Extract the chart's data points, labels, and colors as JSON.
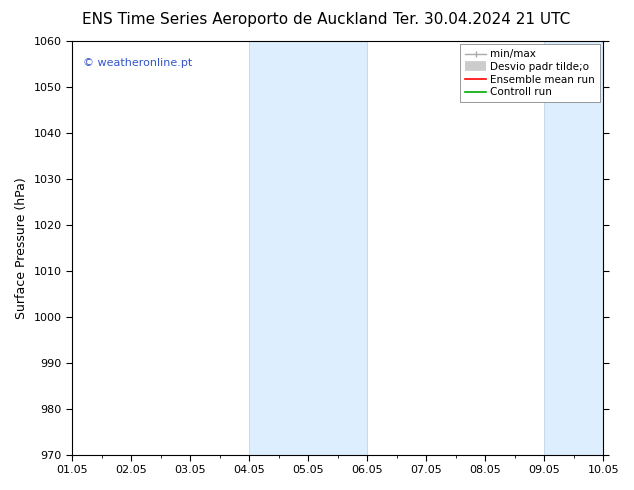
{
  "title_left": "ENS Time Series Aeroporto de Auckland",
  "title_right": "Ter. 30.04.2024 21 UTC",
  "ylabel": "Surface Pressure (hPa)",
  "xlabel_ticks": [
    "01.05",
    "02.05",
    "03.05",
    "04.05",
    "05.05",
    "06.05",
    "07.05",
    "08.05",
    "09.05",
    "10.05"
  ],
  "ylim": [
    970,
    1060
  ],
  "yticks": [
    970,
    980,
    990,
    1000,
    1010,
    1020,
    1030,
    1040,
    1050,
    1060
  ],
  "xlim": [
    0,
    9
  ],
  "background_color": "#ffffff",
  "plot_bg_color": "#ffffff",
  "shaded_regions": [
    {
      "x_start": 3.0,
      "x_end": 4.0,
      "color": "#ddeeff"
    },
    {
      "x_start": 4.0,
      "x_end": 5.0,
      "color": "#ddeeff"
    },
    {
      "x_start": 8.0,
      "x_end": 8.5,
      "color": "#ddeeff"
    },
    {
      "x_start": 8.5,
      "x_end": 9.0,
      "color": "#ddeeff"
    }
  ],
  "shaded_border_color": "#b8d0e8",
  "watermark_text": "© weatheronline.pt",
  "watermark_color": "#3355cc",
  "legend_labels": [
    "min/max",
    "Desvio padr tilde;o",
    "Ensemble mean run",
    "Controll run"
  ],
  "legend_colors": [
    "#aaaaaa",
    "#cccccc",
    "#ff0000",
    "#00aa00"
  ],
  "title_fontsize": 11,
  "tick_fontsize": 8,
  "ylabel_fontsize": 9,
  "watermark_fontsize": 8,
  "legend_fontsize": 7.5
}
